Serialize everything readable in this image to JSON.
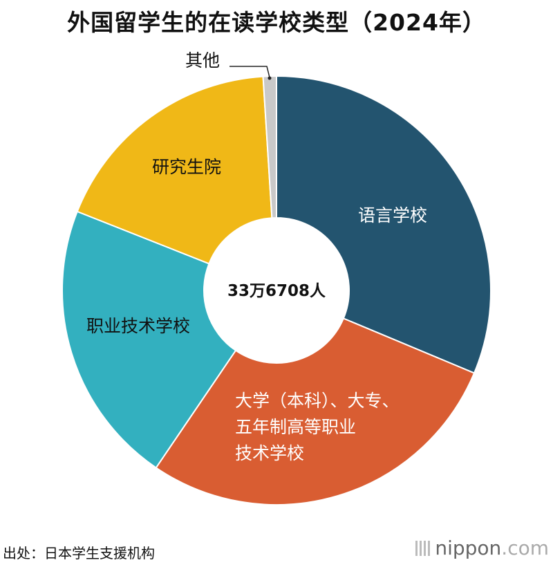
{
  "title": "外国留学生的在读学校类型（2024年）",
  "source": "出处：日本学生支援机构",
  "brand": {
    "name": "nippon",
    "suffix": ".com"
  },
  "chart_data": {
    "type": "pie",
    "style": "donut",
    "total_label": "33万6708人",
    "slices": [
      {
        "label": "语言学校",
        "value": 31.3,
        "color": "#23546f",
        "label_color": "#ffffff"
      },
      {
        "label": "大学（本科）、大专、五年制高等职业技术学校",
        "label_lines": [
          "大学（本科）、大专、",
          "五年制高等职业",
          "技术学校"
        ],
        "value": 28.2,
        "color": "#d95d32",
        "label_color": "#ffffff"
      },
      {
        "label": "职业技术学校",
        "value": 21.5,
        "color": "#33b0bf",
        "label_color": "#111111"
      },
      {
        "label": "研究生院",
        "value": 18.0,
        "color": "#f0b817",
        "label_color": "#111111"
      },
      {
        "label": "其他",
        "value": 1.0,
        "color": "#c9c9c9",
        "label_color": "#111111"
      }
    ]
  }
}
